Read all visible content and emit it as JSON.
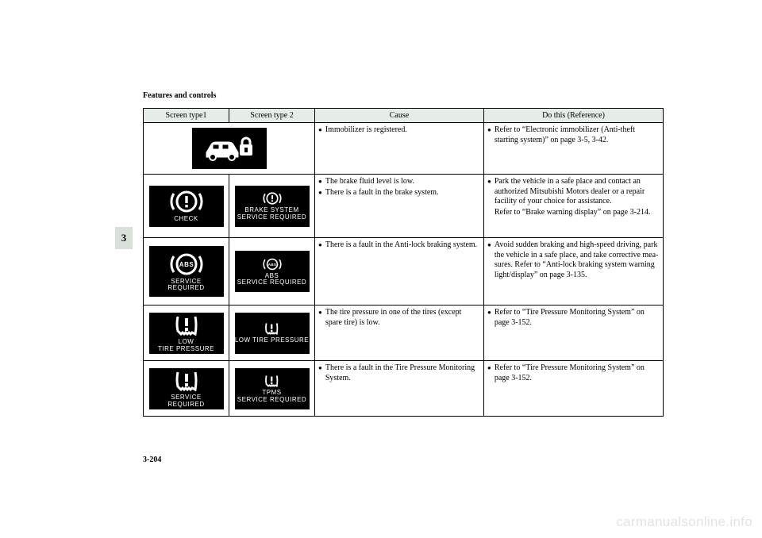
{
  "header": {
    "section_title": "Features and controls",
    "chapter_tab": "3",
    "page_number": "3-204",
    "watermark": "carmanualsonline.info"
  },
  "table": {
    "columns": [
      "Screen type1",
      "Screen type 2",
      "Cause",
      "Do this (Reference)"
    ],
    "rows": [
      {
        "screen1": null,
        "screen2": {
          "label_lines": [],
          "glyph": "car-lock"
        },
        "cause": [
          "Immobilizer is registered."
        ],
        "reference": [
          "Refer to “Electronic immobilizer (Anti-theft starting system)” on page 3-5, 3-42."
        ]
      },
      {
        "screen1": {
          "label_lines": [
            "CHECK"
          ],
          "glyph": "brake-circle"
        },
        "screen2": {
          "label_lines": [
            "BRAKE SYSTEM",
            "SERVICE REQUIRED"
          ],
          "glyph": "brake-circle-small"
        },
        "cause": [
          "The brake fluid level is low.",
          "There is a fault in the brake system."
        ],
        "reference": [
          "Park the vehicle in a safe place and contact an authorized Mitsubishi Motors dealer or a repair facility of your choice for assistance.\nRefer to “Brake warning display” on page 3-214."
        ]
      },
      {
        "screen1": {
          "label_lines": [
            "SERVICE",
            "  REQUIRED"
          ],
          "glyph": "abs-circle"
        },
        "screen2": {
          "label_lines": [
            "ABS",
            "SERVICE REQUIRED"
          ],
          "glyph": "abs-small"
        },
        "cause": [
          "There is a fault in the Anti-lock braking system."
        ],
        "reference": [
          "Avoid sudden braking and high-speed driving, park the vehicle in a safe place, and take corrective mea-sures. Refer to “Anti-lock braking system warning light/display” on page 3-135."
        ]
      },
      {
        "screen1": {
          "label_lines": [
            "LOW",
            "TIRE PRESSURE"
          ],
          "glyph": "tpms"
        },
        "screen2": {
          "label_lines": [
            "LOW TIRE PRESSURE"
          ],
          "glyph": "tpms-small"
        },
        "cause": [
          "The tire pressure in one of the tires (except spare tire) is low."
        ],
        "reference": [
          "Refer to “Tire Pressure Monitoring System” on page 3-152."
        ]
      },
      {
        "screen1": {
          "label_lines": [
            "SERVICE",
            "  REQUIRED"
          ],
          "glyph": "tpms"
        },
        "screen2": {
          "label_lines": [
            "TPMS",
            "SERVICE REQUIRED"
          ],
          "glyph": "tpms-small"
        },
        "cause": [
          "There is a fault in the Tire Pressure Monitoring System."
        ],
        "reference": [
          "Refer to “Tire Pressure Monitoring System” on page 3-152."
        ]
      }
    ]
  }
}
